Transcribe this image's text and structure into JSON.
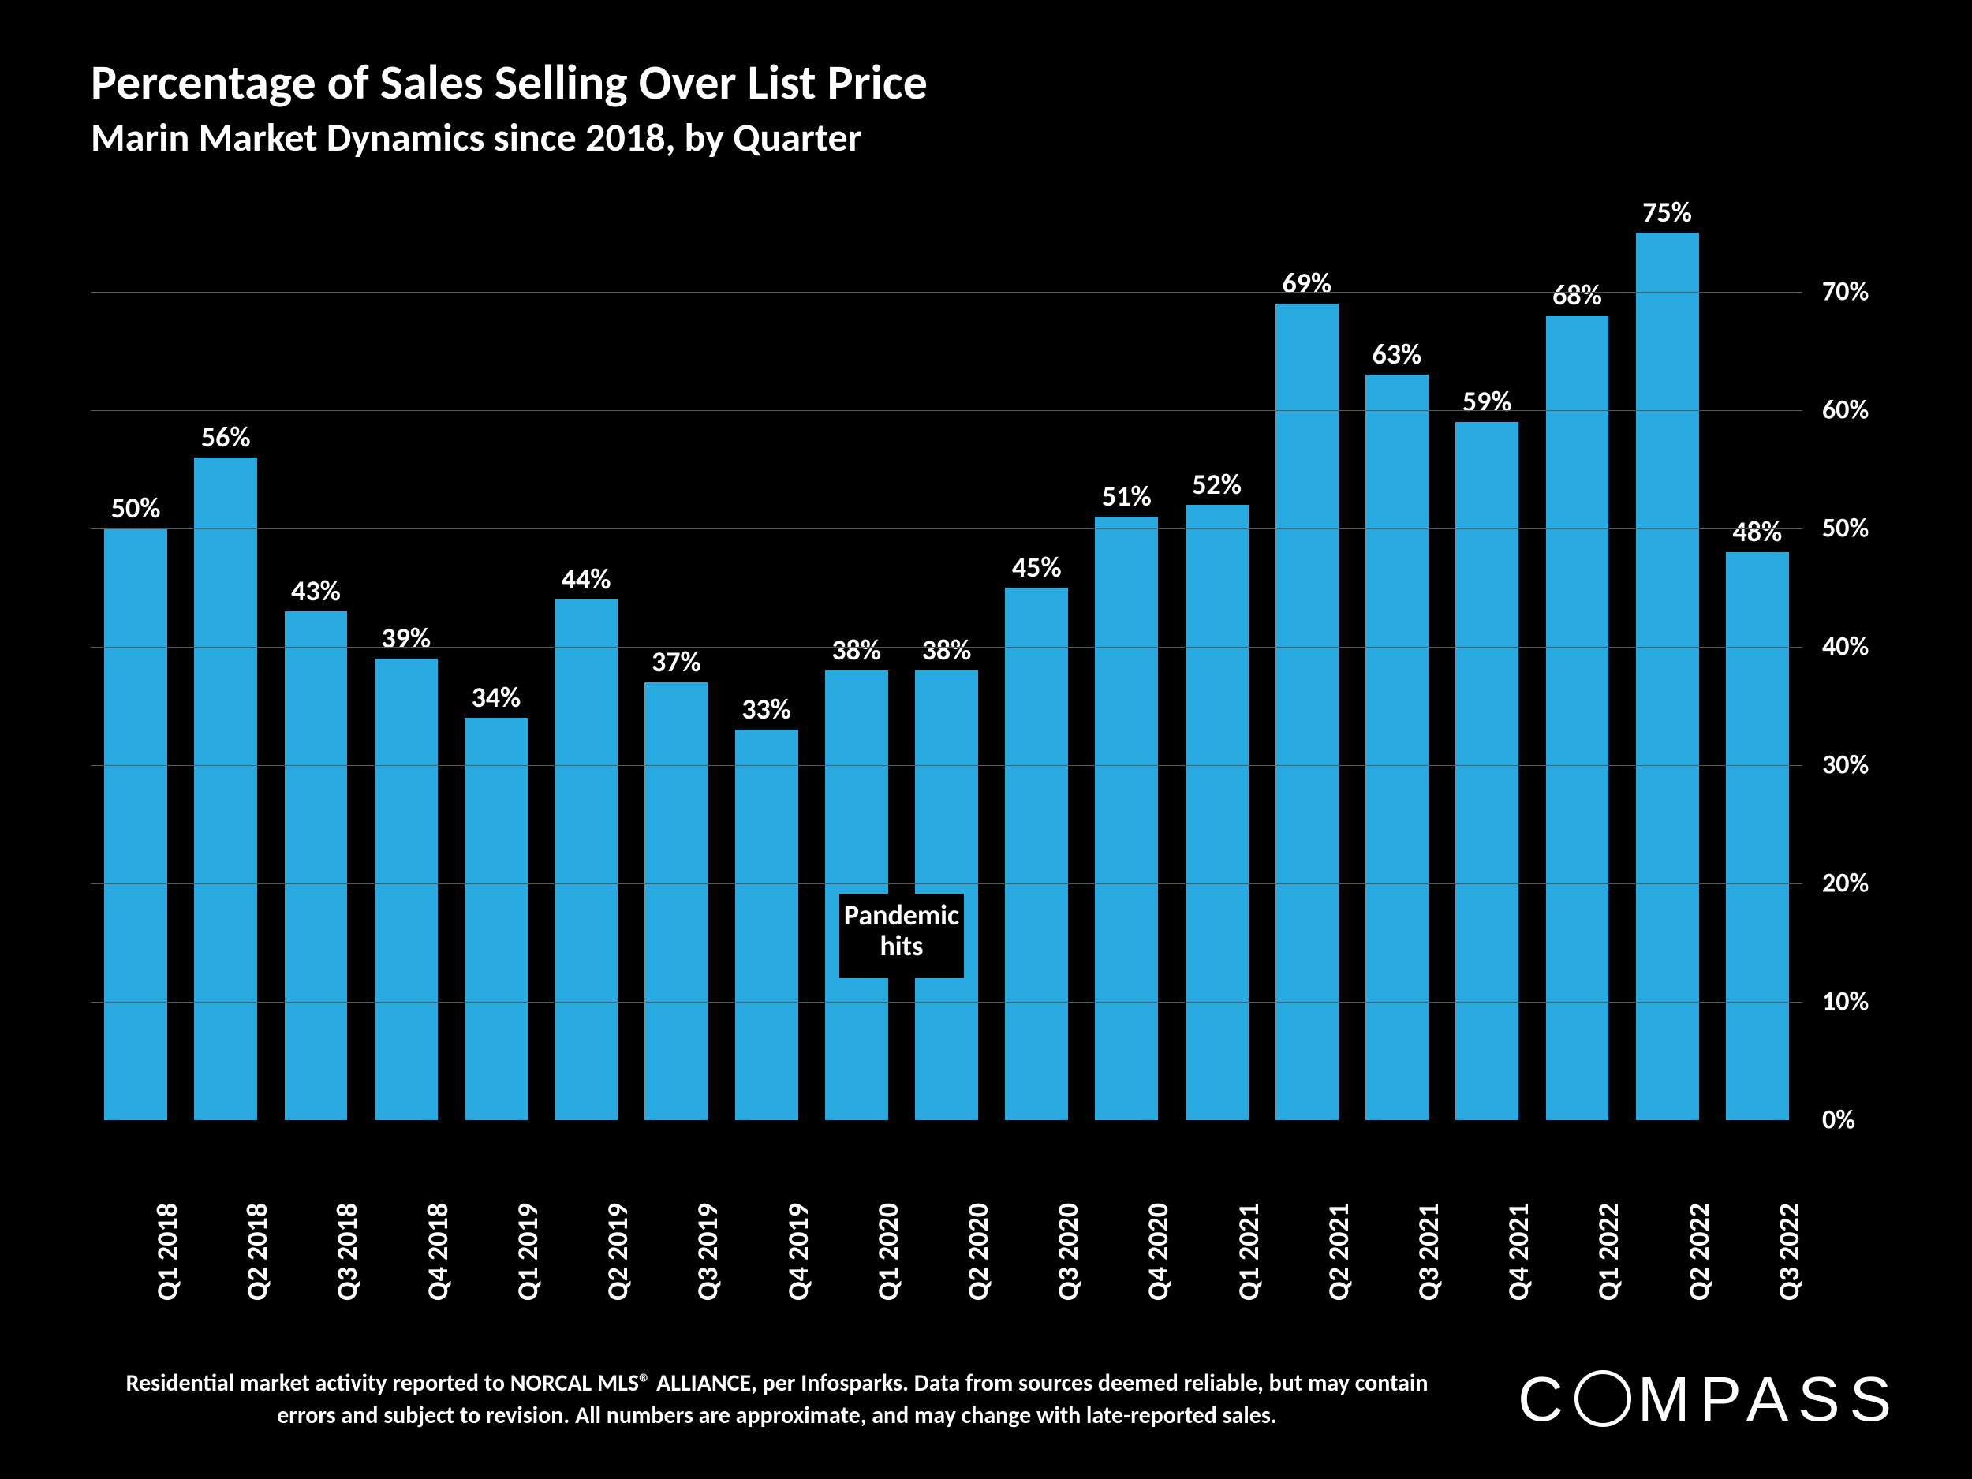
{
  "title": "Percentage of Sales Selling Over List Price",
  "subtitle": "Marin Market Dynamics since 2018, by Quarter",
  "chart": {
    "type": "bar",
    "background_color": "#000000",
    "bar_color": "#29abe2",
    "grid_color": "#595959",
    "text_color": "#ffffff",
    "ymin": 0,
    "ymax": 76,
    "y_ticks": [
      0,
      10,
      20,
      30,
      40,
      50,
      60,
      70
    ],
    "y_tick_labels": [
      "0%",
      "10%",
      "20%",
      "30%",
      "40%",
      "50%",
      "60%",
      "70%"
    ],
    "value_label_fontsize": 36,
    "axis_label_fontsize": 36,
    "y_tick_fontsize": 34,
    "bar_width_ratio": 0.7,
    "categories": [
      "Q1 2018",
      "Q2 2018",
      "Q3 2018",
      "Q4 2018",
      "Q1 2019",
      "Q2 2019",
      "Q3 2019",
      "Q4 2019",
      "Q1 2020",
      "Q2 2020",
      "Q3 2020",
      "Q4 2020",
      "Q1 2021",
      "Q2 2021",
      "Q3 2021",
      "Q4 2021",
      "Q1 2022",
      "Q2 2022",
      "Q3 2022"
    ],
    "values": [
      50,
      56,
      43,
      39,
      34,
      44,
      37,
      33,
      38,
      38,
      45,
      51,
      52,
      69,
      63,
      59,
      68,
      75,
      48
    ],
    "value_labels": [
      "50%",
      "56%",
      "43%",
      "39%",
      "34%",
      "44%",
      "37%",
      "33%",
      "38%",
      "38%",
      "45%",
      "51%",
      "52%",
      "69%",
      "63%",
      "59%",
      "68%",
      "75%",
      "48%"
    ],
    "annotation": {
      "lines": [
        "Pandemic",
        "hits"
      ],
      "center_category_index": 8.5,
      "y_value": 12,
      "fontsize": 36,
      "bg_color": "#000000",
      "text_color": "#ffffff"
    }
  },
  "footnote": "Residential market activity reported to NORCAL MLS® ALLIANCE, per Infosparks. Data from sources deemed reliable, but may contain errors and subject to revision. All numbers are approximate, and may change with late-reported sales.",
  "logo": {
    "prefix": "C",
    "suffix": "MPASS"
  }
}
